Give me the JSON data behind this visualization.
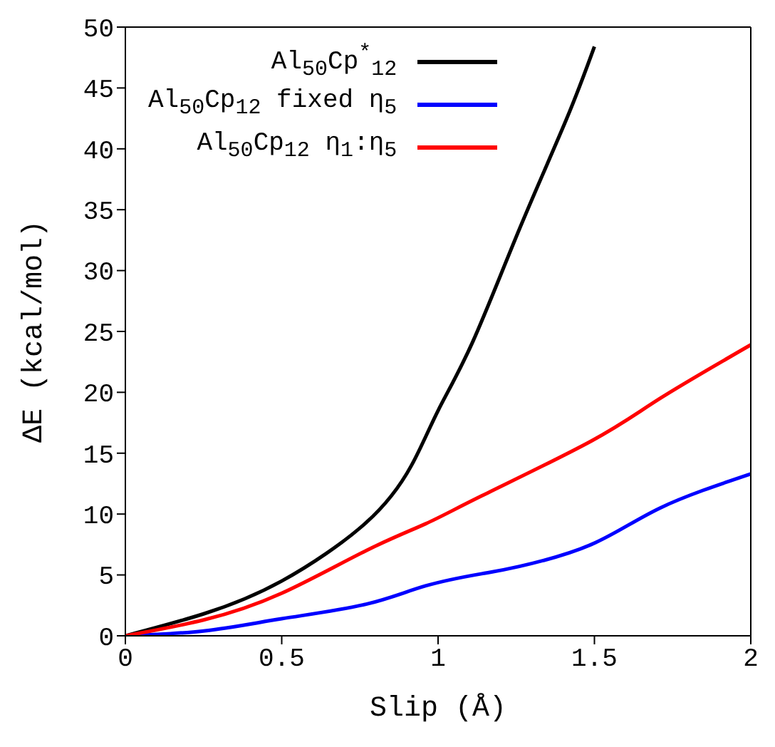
{
  "chart_data": {
    "type": "line",
    "xlabel": "Slip (Å)",
    "ylabel": "ΔE (kcal/mol)",
    "xlim": [
      0,
      2
    ],
    "xticks": [
      0,
      0.5,
      1,
      1.5,
      2
    ],
    "ylim": [
      0,
      50
    ],
    "yticks": [
      0,
      5,
      10,
      15,
      20,
      25,
      30,
      35,
      40,
      45,
      50
    ],
    "legend": "top left",
    "series": [
      {
        "name": "Al$_{50}$Cp$^{*}$$_{12}$",
        "color": "#000000",
        "x": [
          0,
          0.25,
          0.5,
          0.77,
          0.915,
          1,
          1.11,
          1.26,
          1.41,
          1.5
        ],
        "values": [
          0,
          1.8,
          4.5,
          9.3,
          14,
          18.5,
          24.1,
          33.4,
          42.4,
          48.4
        ]
      },
      {
        "name": "Al$_{50}$Cp$_{12}$ fixed η$_{5}$",
        "color": "#0000ff",
        "x": [
          0,
          0.25,
          0.5,
          0.77,
          0.96,
          1.14,
          1.26,
          1.49,
          1.71,
          2
        ],
        "values": [
          0,
          0.4,
          1.4,
          2.6,
          4.1,
          5.1,
          5.7,
          7.5,
          10.5,
          13.3
        ]
      },
      {
        "name": "Al$_{50}$Cp$_{12}$ η$_{1}$:η$_{5}$",
        "color": "#ff0000",
        "x": [
          0,
          0.25,
          0.5,
          0.77,
          0.96,
          1.14,
          1.49,
          1.71,
          2
        ],
        "values": [
          0,
          1.3,
          3.5,
          7,
          9.2,
          11.5,
          16,
          19.5,
          23.9
        ]
      }
    ]
  }
}
